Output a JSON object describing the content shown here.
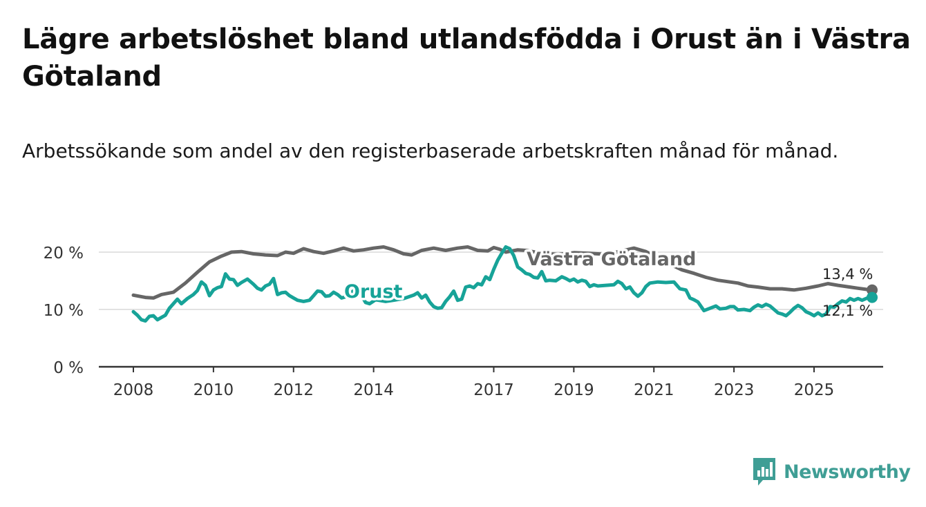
{
  "title": "Lägre arbetslöshet bland utlandsfödda i Orust än i Västra Götaland",
  "subtitle": "Arbetssökande som andel av den registerbaserade arbetskraften månad för månad.",
  "logo": {
    "text": "Newsworthy",
    "icon": "newsworthy-bar-chart-icon",
    "color": "#3f9e95"
  },
  "chart_data": {
    "type": "line",
    "x_range": [
      2007.9,
      2026.85
    ],
    "ylim": [
      0,
      22
    ],
    "y_ticks": [
      0,
      10,
      20
    ],
    "y_tick_labels": [
      "0 %",
      "10 %",
      "20 %"
    ],
    "x_ticks": [
      2008,
      2010,
      2012,
      2014,
      2017,
      2019,
      2021,
      2023,
      2025
    ],
    "x_tick_labels": [
      "2008",
      "2010",
      "2012",
      "2014",
      "2017",
      "2019",
      "2021",
      "2023",
      "2025"
    ],
    "grid": true,
    "series": [
      {
        "name": "Västra Götaland",
        "label": "Västra Götaland",
        "color": "#666666",
        "end_label": "13,4 %",
        "end_value": 13.4,
        "points": [
          [
            2008.0,
            12.5
          ],
          [
            2008.3,
            12.1
          ],
          [
            2008.5,
            12.0
          ],
          [
            2008.7,
            12.6
          ],
          [
            2009.0,
            13.0
          ],
          [
            2009.3,
            14.6
          ],
          [
            2009.6,
            16.5
          ],
          [
            2009.9,
            18.3
          ],
          [
            2010.2,
            19.3
          ],
          [
            2010.45,
            20.0
          ],
          [
            2010.7,
            20.1
          ],
          [
            2011.0,
            19.7
          ],
          [
            2011.3,
            19.5
          ],
          [
            2011.6,
            19.4
          ],
          [
            2011.8,
            20.0
          ],
          [
            2012.0,
            19.8
          ],
          [
            2012.25,
            20.6
          ],
          [
            2012.5,
            20.1
          ],
          [
            2012.75,
            19.8
          ],
          [
            2013.0,
            20.2
          ],
          [
            2013.25,
            20.7
          ],
          [
            2013.5,
            20.2
          ],
          [
            2013.75,
            20.4
          ],
          [
            2014.0,
            20.7
          ],
          [
            2014.25,
            20.9
          ],
          [
            2014.5,
            20.4
          ],
          [
            2014.75,
            19.7
          ],
          [
            2014.95,
            19.5
          ],
          [
            2015.2,
            20.3
          ],
          [
            2015.5,
            20.7
          ],
          [
            2015.8,
            20.3
          ],
          [
            2016.1,
            20.7
          ],
          [
            2016.35,
            20.9
          ],
          [
            2016.6,
            20.3
          ],
          [
            2016.85,
            20.2
          ],
          [
            2017.0,
            20.8
          ],
          [
            2017.15,
            20.5
          ],
          [
            2017.3,
            20.0
          ],
          [
            2017.6,
            20.4
          ],
          [
            2017.8,
            20.3
          ],
          [
            2018.2,
            19.8
          ],
          [
            2018.6,
            19.6
          ],
          [
            2019.0,
            19.9
          ],
          [
            2019.4,
            19.8
          ],
          [
            2019.8,
            19.6
          ],
          [
            2020.2,
            20.2
          ],
          [
            2020.5,
            20.7
          ],
          [
            2020.8,
            20.1
          ],
          [
            2021.1,
            19.0
          ],
          [
            2021.4,
            17.9
          ],
          [
            2021.7,
            16.9
          ],
          [
            2022.0,
            16.3
          ],
          [
            2022.3,
            15.6
          ],
          [
            2022.6,
            15.1
          ],
          [
            2022.9,
            14.8
          ],
          [
            2023.1,
            14.6
          ],
          [
            2023.35,
            14.1
          ],
          [
            2023.6,
            13.9
          ],
          [
            2023.9,
            13.6
          ],
          [
            2024.2,
            13.6
          ],
          [
            2024.5,
            13.4
          ],
          [
            2024.8,
            13.7
          ],
          [
            2025.1,
            14.1
          ],
          [
            2025.35,
            14.5
          ],
          [
            2025.6,
            14.2
          ],
          [
            2025.9,
            13.9
          ],
          [
            2026.1,
            13.7
          ],
          [
            2026.3,
            13.5
          ],
          [
            2026.45,
            13.4
          ]
        ]
      },
      {
        "name": "Orust",
        "label": "Orust",
        "color": "#17a398",
        "end_label": "12,1 %",
        "end_value": 12.1,
        "points": [
          [
            2008.0,
            9.6
          ],
          [
            2008.1,
            9.0
          ],
          [
            2008.2,
            8.2
          ],
          [
            2008.3,
            8.0
          ],
          [
            2008.4,
            8.8
          ],
          [
            2008.5,
            8.9
          ],
          [
            2008.6,
            8.2
          ],
          [
            2008.7,
            8.6
          ],
          [
            2008.8,
            9.0
          ],
          [
            2008.9,
            10.2
          ],
          [
            2009.0,
            11.0
          ],
          [
            2009.1,
            11.8
          ],
          [
            2009.2,
            11.0
          ],
          [
            2009.35,
            11.9
          ],
          [
            2009.5,
            12.6
          ],
          [
            2009.6,
            13.3
          ],
          [
            2009.7,
            14.8
          ],
          [
            2009.8,
            14.2
          ],
          [
            2009.9,
            12.4
          ],
          [
            2010.0,
            13.4
          ],
          [
            2010.1,
            13.8
          ],
          [
            2010.2,
            14.0
          ],
          [
            2010.3,
            16.2
          ],
          [
            2010.4,
            15.3
          ],
          [
            2010.5,
            15.2
          ],
          [
            2010.6,
            14.2
          ],
          [
            2010.7,
            14.7
          ],
          [
            2010.85,
            15.3
          ],
          [
            2011.0,
            14.4
          ],
          [
            2011.1,
            13.7
          ],
          [
            2011.2,
            13.4
          ],
          [
            2011.3,
            14.1
          ],
          [
            2011.4,
            14.4
          ],
          [
            2011.5,
            15.4
          ],
          [
            2011.6,
            12.6
          ],
          [
            2011.7,
            12.9
          ],
          [
            2011.8,
            13.0
          ],
          [
            2011.9,
            12.4
          ],
          [
            2012.0,
            12.0
          ],
          [
            2012.1,
            11.6
          ],
          [
            2012.25,
            11.4
          ],
          [
            2012.4,
            11.6
          ],
          [
            2012.5,
            12.4
          ],
          [
            2012.6,
            13.2
          ],
          [
            2012.7,
            13.1
          ],
          [
            2012.8,
            12.3
          ],
          [
            2012.9,
            12.4
          ],
          [
            2013.0,
            13.0
          ],
          [
            2013.1,
            12.6
          ],
          [
            2013.2,
            12.0
          ],
          [
            2013.3,
            12.2
          ],
          [
            2013.4,
            12.6
          ],
          [
            2013.5,
            13.3
          ],
          [
            2013.6,
            13.1
          ],
          [
            2013.7,
            12.4
          ],
          [
            2013.8,
            11.2
          ],
          [
            2013.9,
            11.0
          ],
          [
            2014.05,
            11.7
          ],
          [
            2014.3,
            11.4
          ],
          [
            2014.5,
            11.6
          ],
          [
            2014.75,
            11.9
          ],
          [
            2015.0,
            12.5
          ],
          [
            2015.1,
            12.9
          ],
          [
            2015.2,
            12.0
          ],
          [
            2015.3,
            12.5
          ],
          [
            2015.4,
            11.3
          ],
          [
            2015.5,
            10.5
          ],
          [
            2015.6,
            10.2
          ],
          [
            2015.7,
            10.3
          ],
          [
            2015.8,
            11.4
          ],
          [
            2015.9,
            12.2
          ],
          [
            2016.0,
            13.2
          ],
          [
            2016.1,
            11.6
          ],
          [
            2016.2,
            11.8
          ],
          [
            2016.3,
            13.9
          ],
          [
            2016.4,
            14.1
          ],
          [
            2016.5,
            13.8
          ],
          [
            2016.6,
            14.5
          ],
          [
            2016.7,
            14.3
          ],
          [
            2016.8,
            15.7
          ],
          [
            2016.9,
            15.2
          ],
          [
            2017.0,
            17.0
          ],
          [
            2017.1,
            18.6
          ],
          [
            2017.2,
            19.8
          ],
          [
            2017.3,
            20.9
          ],
          [
            2017.4,
            20.6
          ],
          [
            2017.5,
            19.4
          ],
          [
            2017.6,
            17.4
          ],
          [
            2017.7,
            16.9
          ],
          [
            2017.8,
            16.3
          ],
          [
            2017.9,
            16.1
          ],
          [
            2018.0,
            15.6
          ],
          [
            2018.1,
            15.5
          ],
          [
            2018.2,
            16.6
          ],
          [
            2018.3,
            15.0
          ],
          [
            2018.4,
            15.1
          ],
          [
            2018.55,
            15.0
          ],
          [
            2018.7,
            15.7
          ],
          [
            2018.8,
            15.4
          ],
          [
            2018.9,
            15.0
          ],
          [
            2019.0,
            15.3
          ],
          [
            2019.1,
            14.8
          ],
          [
            2019.2,
            15.1
          ],
          [
            2019.3,
            14.9
          ],
          [
            2019.4,
            14.0
          ],
          [
            2019.5,
            14.3
          ],
          [
            2019.6,
            14.1
          ],
          [
            2019.8,
            14.2
          ],
          [
            2020.0,
            14.3
          ],
          [
            2020.1,
            14.9
          ],
          [
            2020.2,
            14.5
          ],
          [
            2020.3,
            13.6
          ],
          [
            2020.4,
            13.9
          ],
          [
            2020.5,
            12.9
          ],
          [
            2020.6,
            12.3
          ],
          [
            2020.7,
            12.9
          ],
          [
            2020.8,
            14.0
          ],
          [
            2020.9,
            14.6
          ],
          [
            2021.1,
            14.8
          ],
          [
            2021.3,
            14.7
          ],
          [
            2021.5,
            14.8
          ],
          [
            2021.65,
            13.6
          ],
          [
            2021.8,
            13.4
          ],
          [
            2021.9,
            12.0
          ],
          [
            2022.0,
            11.7
          ],
          [
            2022.1,
            11.3
          ],
          [
            2022.25,
            9.8
          ],
          [
            2022.4,
            10.2
          ],
          [
            2022.55,
            10.6
          ],
          [
            2022.65,
            10.1
          ],
          [
            2022.8,
            10.2
          ],
          [
            2022.9,
            10.5
          ],
          [
            2023.0,
            10.5
          ],
          [
            2023.1,
            9.9
          ],
          [
            2023.25,
            10.0
          ],
          [
            2023.4,
            9.8
          ],
          [
            2023.5,
            10.4
          ],
          [
            2023.6,
            10.8
          ],
          [
            2023.7,
            10.5
          ],
          [
            2023.8,
            10.9
          ],
          [
            2023.9,
            10.6
          ],
          [
            2024.0,
            10.0
          ],
          [
            2024.1,
            9.4
          ],
          [
            2024.2,
            9.2
          ],
          [
            2024.3,
            8.9
          ],
          [
            2024.4,
            9.5
          ],
          [
            2024.5,
            10.2
          ],
          [
            2024.6,
            10.7
          ],
          [
            2024.7,
            10.3
          ],
          [
            2024.8,
            9.6
          ],
          [
            2024.9,
            9.3
          ],
          [
            2025.0,
            8.9
          ],
          [
            2025.1,
            9.4
          ],
          [
            2025.2,
            8.9
          ],
          [
            2025.3,
            9.2
          ],
          [
            2025.4,
            10.5
          ],
          [
            2025.5,
            10.4
          ],
          [
            2025.6,
            11.0
          ],
          [
            2025.7,
            11.5
          ],
          [
            2025.8,
            11.3
          ],
          [
            2025.9,
            11.9
          ],
          [
            2026.0,
            11.6
          ],
          [
            2026.1,
            11.9
          ],
          [
            2026.2,
            11.6
          ],
          [
            2026.3,
            11.9
          ],
          [
            2026.4,
            12.2
          ],
          [
            2026.45,
            12.1
          ]
        ]
      }
    ]
  }
}
